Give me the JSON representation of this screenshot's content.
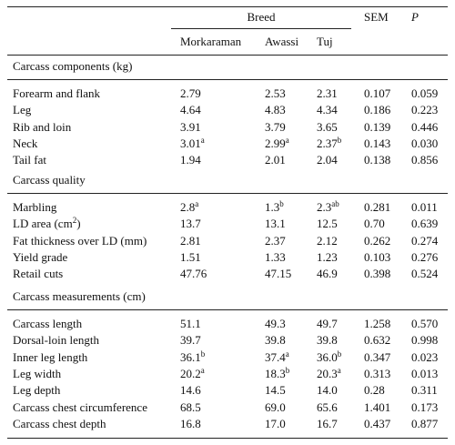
{
  "header": {
    "breed": "Breed",
    "sem": "SEM",
    "p": "P",
    "breeds": [
      "Morkaraman",
      "Awassi",
      "Tuj"
    ]
  },
  "sections": [
    {
      "title": "Carcass components (kg)",
      "rows": [
        {
          "label": "Forearm and flank",
          "m": "2.79",
          "ms": "",
          "a": "2.53",
          "as": "",
          "t": "2.31",
          "ts": "",
          "sem": "0.107",
          "p": "0.059"
        },
        {
          "label": "Leg",
          "m": "4.64",
          "ms": "",
          "a": "4.83",
          "as": "",
          "t": "4.34",
          "ts": "",
          "sem": "0.186",
          "p": "0.223"
        },
        {
          "label": "Rib and loin",
          "m": "3.91",
          "ms": "",
          "a": "3.79",
          "as": "",
          "t": "3.65",
          "ts": "",
          "sem": "0.139",
          "p": "0.446"
        },
        {
          "label": "Neck",
          "m": "3.01",
          "ms": "a",
          "a": "2.99",
          "as": "a",
          "t": "2.37",
          "ts": "b",
          "sem": "0.143",
          "p": "0.030"
        },
        {
          "label": "Tail fat",
          "m": "1.94",
          "ms": "",
          "a": "2.01",
          "as": "",
          "t": "2.04",
          "ts": "",
          "sem": "0.138",
          "p": "0.856"
        }
      ]
    },
    {
      "title": "Carcass quality",
      "rows": [
        {
          "label": "Marbling",
          "m": "2.8",
          "ms": "a",
          "a": "1.3",
          "as": "b",
          "t": "2.3",
          "ts": "ab",
          "sem": "0.281",
          "p": "0.011"
        },
        {
          "label": "LD area (cm",
          "label_sup": "2",
          "label_after": ")",
          "m": "13.7",
          "ms": "",
          "a": "13.1",
          "as": "",
          "t": "12.5",
          "ts": "",
          "sem": "0.70",
          "p": "0.639"
        },
        {
          "label": "Fat thickness over LD (mm)",
          "m": "2.81",
          "ms": "",
          "a": "2.37",
          "as": "",
          "t": "2.12",
          "ts": "",
          "sem": "0.262",
          "p": "0.274"
        },
        {
          "label": "Yield grade",
          "m": "1.51",
          "ms": "",
          "a": "1.33",
          "as": "",
          "t": "1.23",
          "ts": "",
          "sem": "0.103",
          "p": "0.276"
        },
        {
          "label": "Retail cuts",
          "m": "47.76",
          "ms": "",
          "a": "47.15",
          "as": "",
          "t": "46.9",
          "ts": "",
          "sem": "0.398",
          "p": "0.524"
        }
      ]
    },
    {
      "title": "Carcass measurements (cm)",
      "rows": [
        {
          "label": "Carcass length",
          "m": "51.1",
          "ms": "",
          "a": "49.3",
          "as": "",
          "t": "49.7",
          "ts": "",
          "sem": "1.258",
          "p": "0.570"
        },
        {
          "label": "Dorsal-loin length",
          "m": "39.7",
          "ms": "",
          "a": "39.8",
          "as": "",
          "t": "39.8",
          "ts": "",
          "sem": "0.632",
          "p": "0.998"
        },
        {
          "label": "Inner leg length",
          "m": "36.1",
          "ms": "b",
          "a": "37.4",
          "as": "a",
          "t": "36.0",
          "ts": "b",
          "sem": "0.347",
          "p": "0.023"
        },
        {
          "label": "Leg width",
          "m": "20.2",
          "ms": "a",
          "a": "18.3",
          "as": "b",
          "t": "20.3",
          "ts": "a",
          "sem": "0.313",
          "p": "0.013"
        },
        {
          "label": "Leg depth",
          "m": "14.6",
          "ms": "",
          "a": "14.5",
          "as": "",
          "t": "14.0",
          "ts": "",
          "sem": "0.28",
          "p": "0.311"
        },
        {
          "label": "Carcass chest circumference",
          "m": "68.5",
          "ms": "",
          "a": "69.0",
          "as": "",
          "t": "65.6",
          "ts": "",
          "sem": "1.401",
          "p": "0.173"
        },
        {
          "label": "Carcass chest depth",
          "m": "16.8",
          "ms": "",
          "a": "17.0",
          "as": "",
          "t": "16.7",
          "ts": "",
          "sem": "0.437",
          "p": "0.877"
        }
      ]
    }
  ]
}
